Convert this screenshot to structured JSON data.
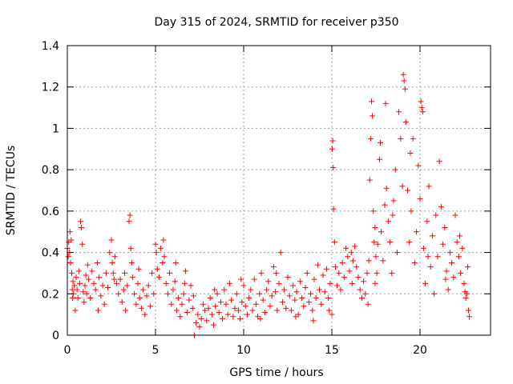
{
  "chart_data": {
    "type": "scatter",
    "title": "Day 315 of 2024, SRMTID for receiver p350",
    "xlabel": "GPS time / hours",
    "ylabel": "SRMTID / TECUs",
    "xlim": [
      0,
      24
    ],
    "ylim": [
      0,
      1.4
    ],
    "xticks": [
      "0",
      "5",
      "10",
      "15",
      "20"
    ],
    "xtick_values": [
      0,
      5,
      10,
      15,
      20
    ],
    "yticks": [
      "0",
      "0.2",
      "0.4",
      "0.6",
      "0.8",
      "1",
      "1.2",
      "1.4"
    ],
    "ytick_values": [
      0,
      0.2,
      0.4,
      0.6,
      0.8,
      1.0,
      1.2,
      1.4
    ],
    "grid": true,
    "marker": "plus",
    "color": "#ff0000",
    "series": [
      {
        "name": "SRMTID",
        "points": [
          [
            0.0,
            0.42
          ],
          [
            0.05,
            0.38
          ],
          [
            0.08,
            0.45
          ],
          [
            0.12,
            0.4
          ],
          [
            0.15,
            0.5
          ],
          [
            0.18,
            0.35
          ],
          [
            0.22,
            0.46
          ],
          [
            0.25,
            0.3
          ],
          [
            0.28,
            0.22
          ],
          [
            0.32,
            0.26
          ],
          [
            0.35,
            0.2
          ],
          [
            0.4,
            0.24
          ],
          [
            0.45,
            0.12
          ],
          [
            0.5,
            0.28
          ],
          [
            0.55,
            0.22
          ],
          [
            0.6,
            0.18
          ],
          [
            0.65,
            0.31
          ],
          [
            0.7,
            0.25
          ],
          [
            0.75,
            0.55
          ],
          [
            0.8,
            0.52
          ],
          [
            0.85,
            0.44
          ],
          [
            0.9,
            0.21
          ],
          [
            0.95,
            0.16
          ],
          [
            1.0,
            0.24
          ],
          [
            1.05,
            0.29
          ],
          [
            1.1,
            0.2
          ],
          [
            1.2,
            0.27
          ],
          [
            1.3,
            0.18
          ],
          [
            1.4,
            0.31
          ],
          [
            1.5,
            0.25
          ],
          [
            1.6,
            0.22
          ],
          [
            1.7,
            0.35
          ],
          [
            1.8,
            0.28
          ],
          [
            1.9,
            0.19
          ],
          [
            2.0,
            0.24
          ],
          [
            2.1,
            0.15
          ],
          [
            2.2,
            0.3
          ],
          [
            2.3,
            0.23
          ],
          [
            2.4,
            0.4
          ],
          [
            2.5,
            0.46
          ],
          [
            2.55,
            0.35
          ],
          [
            2.6,
            0.3
          ],
          [
            2.7,
            0.38
          ],
          [
            2.8,
            0.25
          ],
          [
            2.9,
            0.2
          ],
          [
            3.0,
            0.27
          ],
          [
            3.1,
            0.16
          ],
          [
            3.2,
            0.22
          ],
          [
            3.3,
            0.12
          ],
          [
            3.4,
            0.24
          ],
          [
            3.5,
            0.55
          ],
          [
            3.55,
            0.58
          ],
          [
            3.6,
            0.42
          ],
          [
            3.65,
            0.35
          ],
          [
            3.7,
            0.28
          ],
          [
            3.8,
            0.2
          ],
          [
            3.9,
            0.15
          ],
          [
            4.0,
            0.25
          ],
          [
            4.1,
            0.18
          ],
          [
            4.2,
            0.13
          ],
          [
            4.3,
            0.22
          ],
          [
            4.4,
            0.1
          ],
          [
            4.5,
            0.19
          ],
          [
            4.6,
            0.24
          ],
          [
            4.7,
            0.14
          ],
          [
            4.8,
            0.3
          ],
          [
            4.9,
            0.2
          ],
          [
            5.0,
            0.44
          ],
          [
            5.05,
            0.4
          ],
          [
            5.1,
            0.32
          ],
          [
            5.2,
            0.28
          ],
          [
            5.3,
            0.42
          ],
          [
            5.4,
            0.35
          ],
          [
            5.5,
            0.38
          ],
          [
            5.6,
            0.25
          ],
          [
            5.7,
            0.2
          ],
          [
            5.8,
            0.3
          ],
          [
            5.9,
            0.15
          ],
          [
            6.0,
            0.22
          ],
          [
            6.1,
            0.26
          ],
          [
            6.2,
            0.12
          ],
          [
            6.3,
            0.18
          ],
          [
            6.4,
            0.09
          ],
          [
            6.5,
            0.15
          ],
          [
            6.6,
            0.2
          ],
          [
            6.7,
            0.31
          ],
          [
            6.8,
            0.11
          ],
          [
            6.9,
            0.17
          ],
          [
            7.0,
            0.24
          ],
          [
            7.1,
            0.13
          ],
          [
            7.2,
            0.0
          ],
          [
            7.3,
            0.06
          ],
          [
            7.4,
            0.1
          ],
          [
            7.5,
            0.04
          ],
          [
            7.6,
            0.08
          ],
          [
            7.7,
            0.15
          ],
          [
            7.8,
            0.12
          ],
          [
            7.9,
            0.07
          ],
          [
            8.0,
            0.13
          ],
          [
            8.1,
            0.18
          ],
          [
            8.2,
            0.1
          ],
          [
            8.3,
            0.05
          ],
          [
            8.4,
            0.14
          ],
          [
            8.5,
            0.2
          ],
          [
            8.6,
            0.11
          ],
          [
            8.7,
            0.16
          ],
          [
            8.8,
            0.08
          ],
          [
            8.9,
            0.22
          ],
          [
            9.0,
            0.15
          ],
          [
            9.1,
            0.1
          ],
          [
            9.2,
            0.25
          ],
          [
            9.3,
            0.17
          ],
          [
            9.4,
            0.09
          ],
          [
            9.5,
            0.13
          ],
          [
            9.6,
            0.2
          ],
          [
            9.7,
            0.12
          ],
          [
            9.8,
            0.08
          ],
          [
            9.9,
            0.16
          ],
          [
            10.0,
            0.24
          ],
          [
            10.1,
            0.14
          ],
          [
            10.2,
            0.1
          ],
          [
            10.3,
            0.18
          ],
          [
            10.4,
            0.22
          ],
          [
            10.5,
            0.12
          ],
          [
            10.6,
            0.27
          ],
          [
            10.7,
            0.15
          ],
          [
            10.8,
            0.09
          ],
          [
            10.9,
            0.2
          ],
          [
            11.0,
            0.3
          ],
          [
            11.1,
            0.17
          ],
          [
            11.2,
            0.11
          ],
          [
            11.3,
            0.22
          ],
          [
            11.4,
            0.26
          ],
          [
            11.5,
            0.14
          ],
          [
            11.6,
            0.19
          ],
          [
            11.7,
            0.33
          ],
          [
            11.8,
            0.21
          ],
          [
            11.9,
            0.12
          ],
          [
            12.0,
            0.25
          ],
          [
            12.1,
            0.4
          ],
          [
            12.2,
            0.16
          ],
          [
            12.3,
            0.22
          ],
          [
            12.4,
            0.13
          ],
          [
            12.5,
            0.28
          ],
          [
            12.6,
            0.19
          ],
          [
            12.7,
            0.12
          ],
          [
            12.8,
            0.24
          ],
          [
            12.9,
            0.17
          ],
          [
            13.0,
            0.21
          ],
          [
            13.1,
            0.1
          ],
          [
            13.2,
            0.26
          ],
          [
            13.3,
            0.18
          ],
          [
            13.4,
            0.14
          ],
          [
            13.5,
            0.23
          ],
          [
            13.6,
            0.3
          ],
          [
            13.7,
            0.16
          ],
          [
            13.8,
            0.2
          ],
          [
            13.9,
            0.12
          ],
          [
            14.0,
            0.27
          ],
          [
            14.1,
            0.18
          ],
          [
            14.2,
            0.34
          ],
          [
            14.3,
            0.22
          ],
          [
            14.4,
            0.15
          ],
          [
            14.5,
            0.29
          ],
          [
            14.6,
            0.21
          ],
          [
            14.7,
            0.32
          ],
          [
            14.8,
            0.18
          ],
          [
            14.9,
            0.25
          ],
          [
            15.0,
            0.1
          ],
          [
            15.02,
            0.9
          ],
          [
            15.05,
            0.94
          ],
          [
            15.08,
            0.81
          ],
          [
            15.1,
            0.61
          ],
          [
            15.15,
            0.45
          ],
          [
            15.2,
            0.33
          ],
          [
            15.3,
            0.24
          ],
          [
            15.4,
            0.3
          ],
          [
            15.5,
            0.22
          ],
          [
            15.6,
            0.35
          ],
          [
            15.7,
            0.28
          ],
          [
            15.8,
            0.42
          ],
          [
            15.9,
            0.38
          ],
          [
            16.0,
            0.31
          ],
          [
            16.1,
            0.4
          ],
          [
            16.2,
            0.36
          ],
          [
            16.3,
            0.43
          ],
          [
            16.4,
            0.33
          ],
          [
            16.5,
            0.28
          ],
          [
            16.6,
            0.22
          ],
          [
            16.7,
            0.18
          ],
          [
            16.8,
            0.26
          ],
          [
            16.9,
            0.2
          ],
          [
            17.0,
            0.3
          ],
          [
            17.05,
            0.15
          ],
          [
            17.1,
            0.36
          ],
          [
            17.15,
            0.75
          ],
          [
            17.2,
            0.95
          ],
          [
            17.25,
            1.13
          ],
          [
            17.3,
            1.06
          ],
          [
            17.35,
            0.6
          ],
          [
            17.4,
            0.45
          ],
          [
            17.45,
            0.52
          ],
          [
            17.5,
            0.38
          ],
          [
            17.55,
            0.3
          ],
          [
            17.6,
            0.44
          ],
          [
            17.7,
            0.85
          ],
          [
            17.75,
            0.93
          ],
          [
            17.8,
            0.5
          ],
          [
            17.9,
            0.36
          ],
          [
            18.0,
            0.63
          ],
          [
            18.05,
            1.12
          ],
          [
            18.1,
            0.71
          ],
          [
            18.2,
            0.55
          ],
          [
            18.3,
            0.45
          ],
          [
            18.4,
            0.3
          ],
          [
            18.5,
            0.65
          ],
          [
            18.6,
            0.8
          ],
          [
            18.7,
            0.4
          ],
          [
            18.8,
            1.08
          ],
          [
            18.9,
            0.95
          ],
          [
            19.0,
            0.72
          ],
          [
            19.05,
            1.26
          ],
          [
            19.1,
            1.23
          ],
          [
            19.15,
            1.19
          ],
          [
            19.2,
            1.03
          ],
          [
            19.3,
            0.7
          ],
          [
            19.4,
            0.45
          ],
          [
            19.5,
            0.6
          ],
          [
            19.6,
            0.95
          ],
          [
            19.7,
            0.35
          ],
          [
            19.8,
            0.5
          ],
          [
            19.9,
            0.82
          ],
          [
            20.0,
            0.66
          ],
          [
            20.05,
            1.13
          ],
          [
            20.1,
            1.1
          ],
          [
            20.15,
            1.08
          ],
          [
            20.2,
            0.42
          ],
          [
            20.3,
            0.25
          ],
          [
            20.4,
            0.55
          ],
          [
            20.5,
            0.72
          ],
          [
            20.6,
            0.33
          ],
          [
            20.7,
            0.48
          ],
          [
            20.8,
            0.2
          ],
          [
            20.9,
            0.58
          ],
          [
            21.0,
            0.38
          ],
          [
            21.1,
            0.84
          ],
          [
            21.2,
            0.62
          ],
          [
            21.3,
            0.44
          ],
          [
            21.4,
            0.52
          ],
          [
            21.5,
            0.31
          ],
          [
            21.6,
            0.22
          ],
          [
            21.7,
            0.4
          ],
          [
            21.8,
            0.35
          ],
          [
            21.9,
            0.28
          ],
          [
            22.0,
            0.58
          ],
          [
            22.1,
            0.45
          ],
          [
            22.2,
            0.38
          ],
          [
            22.3,
            0.3
          ],
          [
            22.4,
            0.42
          ],
          [
            22.5,
            0.25
          ],
          [
            22.55,
            0.21
          ],
          [
            22.6,
            0.18
          ],
          [
            22.65,
            0.2
          ],
          [
            22.7,
            0.33
          ],
          [
            22.75,
            0.12
          ],
          [
            22.8,
            0.09
          ],
          [
            0.3,
            0.18
          ],
          [
            1.15,
            0.34
          ],
          [
            2.65,
            0.27
          ],
          [
            4.05,
            0.32
          ],
          [
            5.45,
            0.46
          ],
          [
            6.15,
            0.35
          ],
          [
            7.15,
            0.19
          ],
          [
            8.35,
            0.22
          ],
          [
            9.85,
            0.27
          ],
          [
            10.95,
            0.08
          ],
          [
            11.85,
            0.3
          ],
          [
            12.95,
            0.09
          ],
          [
            13.95,
            0.07
          ],
          [
            14.85,
            0.12
          ],
          [
            16.15,
            0.25
          ],
          [
            17.45,
            0.25
          ],
          [
            18.45,
            0.58
          ],
          [
            19.45,
            0.88
          ],
          [
            20.45,
            0.38
          ],
          [
            21.45,
            0.27
          ],
          [
            22.25,
            0.48
          ],
          [
            1.75,
            0.12
          ],
          [
            3.25,
            0.3
          ],
          [
            6.65,
            0.25
          ]
        ]
      }
    ]
  }
}
